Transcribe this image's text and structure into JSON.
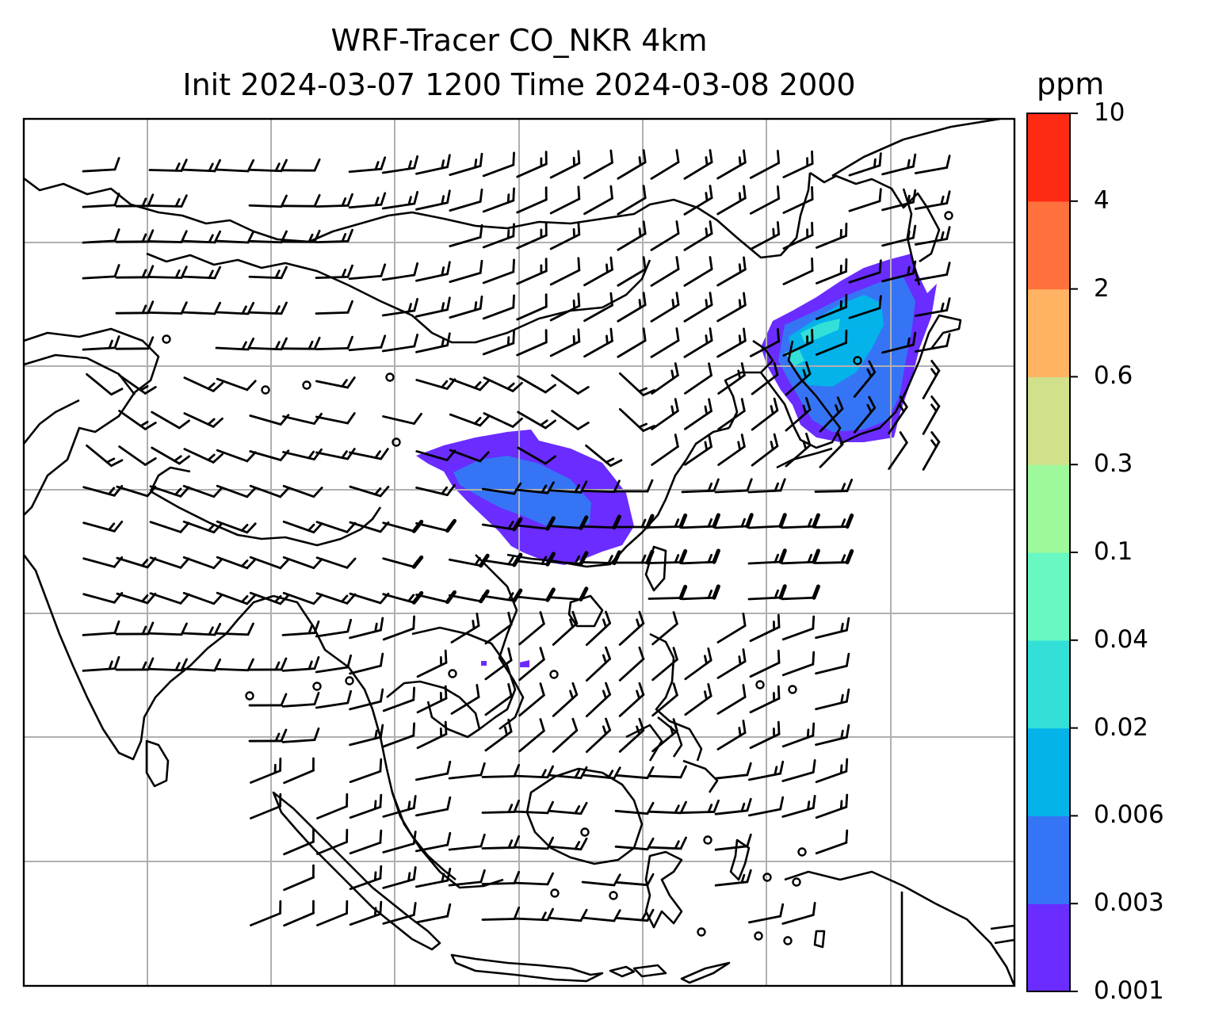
{
  "chart_data": {
    "type": "heatmap",
    "title": "WRF-Tracer CO_NKR 4km",
    "subtitle": "Init 2024-03-07 1200 Time 2024-03-08 2000",
    "colorbar": {
      "label": "ppm",
      "ticks": [
        "0.001",
        "0.003",
        "0.006",
        "0.02",
        "0.04",
        "0.1",
        "0.3",
        "0.6",
        "2",
        "4",
        "10"
      ],
      "levels": [
        0.001,
        0.003,
        0.006,
        0.02,
        0.04,
        0.1,
        0.3,
        0.6,
        2,
        4,
        10
      ],
      "colors": [
        "#6a2cff",
        "#3575f5",
        "#03b3ea",
        "#33e0d8",
        "#67f9c1",
        "#9ef99c",
        "#d0e08b",
        "#ffb363",
        "#ff713c",
        "#ff2a14"
      ]
    },
    "map": {
      "region": "East and Southeast Asia",
      "gridlines": true,
      "coastlines": true,
      "country_borders": true
    },
    "plumes": [
      {
        "region": "Northeast China / Korea",
        "max_level": 0.02,
        "dominant_level": 0.006
      },
      {
        "region": "Southern China",
        "max_level": 0.006,
        "dominant_level": 0.003
      }
    ],
    "wind_barbs": true
  }
}
